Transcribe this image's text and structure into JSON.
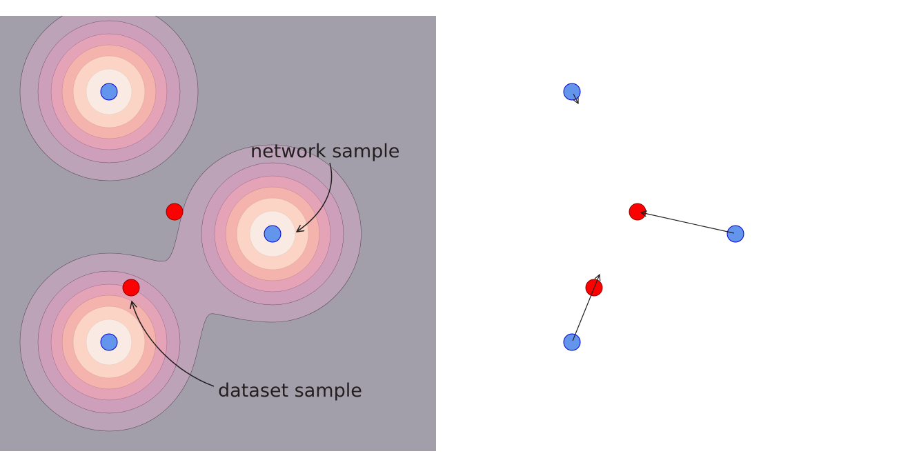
{
  "annotations": {
    "network_label": "network sample",
    "dataset_label": "dataset sample"
  },
  "colors": {
    "background": "#a29fab",
    "contour_levels": [
      "#bca3b8",
      "#ce9fbb",
      "#e5a3b7",
      "#f5b3ad",
      "#fbd4c5",
      "#f9ebe4"
    ],
    "network_point_fill": "#6495ed",
    "network_point_stroke": "#0000cd",
    "dataset_point_fill": "#ff0000",
    "dataset_point_stroke": "#8b0000",
    "arrow": "#231f20"
  },
  "icons": [
    "curved-arrow-icon",
    "straight-arrow-icon"
  ]
}
